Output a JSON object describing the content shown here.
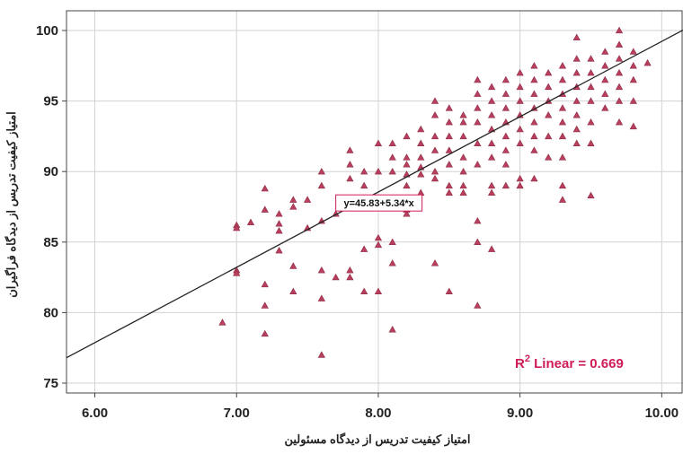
{
  "chart_data": {
    "type": "scatter",
    "xlabel": "امتیاز کیفیت تدریس از دیدگاه مسئولین",
    "ylabel": "امتیاز کیفیت تدریس از دیدگاه فراگیران",
    "xlim": [
      5.8,
      10.15
    ],
    "ylim": [
      74.3,
      101.4
    ],
    "x_ticks": [
      6.0,
      7.0,
      8.0,
      9.0,
      10.0
    ],
    "x_tick_labels": [
      "6.00",
      "7.00",
      "8.00",
      "9.00",
      "10.00"
    ],
    "y_ticks": [
      75,
      80,
      85,
      90,
      95,
      100
    ],
    "y_tick_labels": [
      "75",
      "80",
      "85",
      "90",
      "95",
      "100"
    ],
    "grid": true,
    "marker": "triangle",
    "marker_color": "#b8405e",
    "fit_line_color": "#222222",
    "fit": {
      "intercept": 45.83,
      "slope": 5.34,
      "equation_label": "y=45.83+5.34*x",
      "r2_label": "R² Linear = 0.669",
      "r2_color": "#d01c56"
    },
    "series": [
      {
        "points": [
          [
            6.9,
            79.3
          ],
          [
            7.0,
            86.2
          ],
          [
            7.0,
            86.0
          ],
          [
            7.0,
            83.0
          ],
          [
            7.0,
            82.8
          ],
          [
            7.1,
            86.4
          ],
          [
            7.2,
            88.8
          ],
          [
            7.2,
            87.3
          ],
          [
            7.2,
            82.0
          ],
          [
            7.2,
            80.5
          ],
          [
            7.2,
            78.5
          ],
          [
            7.3,
            87.0
          ],
          [
            7.3,
            86.3
          ],
          [
            7.3,
            85.8
          ],
          [
            7.3,
            84.4
          ],
          [
            7.4,
            88.0
          ],
          [
            7.4,
            87.5
          ],
          [
            7.4,
            83.3
          ],
          [
            7.4,
            81.5
          ],
          [
            7.5,
            88.0
          ],
          [
            7.5,
            86.0
          ],
          [
            7.6,
            90.0
          ],
          [
            7.6,
            89.0
          ],
          [
            7.6,
            86.5
          ],
          [
            7.6,
            83.0
          ],
          [
            7.6,
            81.0
          ],
          [
            7.6,
            77.0
          ],
          [
            7.7,
            87.0
          ],
          [
            7.7,
            82.5
          ],
          [
            7.8,
            91.5
          ],
          [
            7.8,
            90.5
          ],
          [
            7.8,
            89.5
          ],
          [
            7.8,
            83.0
          ],
          [
            7.8,
            82.5
          ],
          [
            7.9,
            90.0
          ],
          [
            7.9,
            89.0
          ],
          [
            7.9,
            84.5
          ],
          [
            7.9,
            81.5
          ],
          [
            8.0,
            92.0
          ],
          [
            8.0,
            90.0
          ],
          [
            8.0,
            85.3
          ],
          [
            8.0,
            84.8
          ],
          [
            8.0,
            81.5
          ],
          [
            8.1,
            92.0
          ],
          [
            8.1,
            91.0
          ],
          [
            8.1,
            90.0
          ],
          [
            8.1,
            85.0
          ],
          [
            8.1,
            83.5
          ],
          [
            8.1,
            78.8
          ],
          [
            8.2,
            92.5
          ],
          [
            8.2,
            91.0
          ],
          [
            8.2,
            90.5
          ],
          [
            8.2,
            89.8
          ],
          [
            8.2,
            89.0
          ],
          [
            8.2,
            87.3
          ],
          [
            8.2,
            87.0
          ],
          [
            8.3,
            93.0
          ],
          [
            8.3,
            92.0
          ],
          [
            8.3,
            91.0
          ],
          [
            8.3,
            90.3
          ],
          [
            8.3,
            89.8
          ],
          [
            8.3,
            88.5
          ],
          [
            8.4,
            95.0
          ],
          [
            8.4,
            94.0
          ],
          [
            8.4,
            92.5
          ],
          [
            8.4,
            91.5
          ],
          [
            8.4,
            90.0
          ],
          [
            8.4,
            89.5
          ],
          [
            8.4,
            83.5
          ],
          [
            8.5,
            94.5
          ],
          [
            8.5,
            93.5
          ],
          [
            8.5,
            92.5
          ],
          [
            8.5,
            91.5
          ],
          [
            8.5,
            90.5
          ],
          [
            8.5,
            89.0
          ],
          [
            8.5,
            88.5
          ],
          [
            8.5,
            81.5
          ],
          [
            8.6,
            94.0
          ],
          [
            8.6,
            93.5
          ],
          [
            8.6,
            92.5
          ],
          [
            8.6,
            91.0
          ],
          [
            8.6,
            90.0
          ],
          [
            8.6,
            89.0
          ],
          [
            8.6,
            88.5
          ],
          [
            8.7,
            96.5
          ],
          [
            8.7,
            95.5
          ],
          [
            8.7,
            94.5
          ],
          [
            8.7,
            93.5
          ],
          [
            8.7,
            92.0
          ],
          [
            8.7,
            90.5
          ],
          [
            8.7,
            86.5
          ],
          [
            8.7,
            85.0
          ],
          [
            8.7,
            80.5
          ],
          [
            8.8,
            96.0
          ],
          [
            8.8,
            95.0
          ],
          [
            8.8,
            94.0
          ],
          [
            8.8,
            93.0
          ],
          [
            8.8,
            92.0
          ],
          [
            8.8,
            91.0
          ],
          [
            8.8,
            89.0
          ],
          [
            8.8,
            88.5
          ],
          [
            8.8,
            84.5
          ],
          [
            8.9,
            96.5
          ],
          [
            8.9,
            95.5
          ],
          [
            8.9,
            94.5
          ],
          [
            8.9,
            93.5
          ],
          [
            8.9,
            92.5
          ],
          [
            8.9,
            91.5
          ],
          [
            8.9,
            90.5
          ],
          [
            8.9,
            89.0
          ],
          [
            9.0,
            97.0
          ],
          [
            9.0,
            96.0
          ],
          [
            9.0,
            95.0
          ],
          [
            9.0,
            94.0
          ],
          [
            9.0,
            93.0
          ],
          [
            9.0,
            92.0
          ],
          [
            9.0,
            89.5
          ],
          [
            9.0,
            89.0
          ],
          [
            9.1,
            97.5
          ],
          [
            9.1,
            96.5
          ],
          [
            9.1,
            95.5
          ],
          [
            9.1,
            94.5
          ],
          [
            9.1,
            93.5
          ],
          [
            9.1,
            92.5
          ],
          [
            9.1,
            91.5
          ],
          [
            9.1,
            89.5
          ],
          [
            9.2,
            97.0
          ],
          [
            9.2,
            96.0
          ],
          [
            9.2,
            95.0
          ],
          [
            9.2,
            94.0
          ],
          [
            9.2,
            92.5
          ],
          [
            9.2,
            91.0
          ],
          [
            9.3,
            97.5
          ],
          [
            9.3,
            96.5
          ],
          [
            9.3,
            95.5
          ],
          [
            9.3,
            94.5
          ],
          [
            9.3,
            93.5
          ],
          [
            9.3,
            92.5
          ],
          [
            9.3,
            91.0
          ],
          [
            9.3,
            89.0
          ],
          [
            9.3,
            88.0
          ],
          [
            9.4,
            99.5
          ],
          [
            9.4,
            98.0
          ],
          [
            9.4,
            97.0
          ],
          [
            9.4,
            96.0
          ],
          [
            9.4,
            95.0
          ],
          [
            9.4,
            94.0
          ],
          [
            9.4,
            93.0
          ],
          [
            9.4,
            92.0
          ],
          [
            9.5,
            98.0
          ],
          [
            9.5,
            97.0
          ],
          [
            9.5,
            96.0
          ],
          [
            9.5,
            95.0
          ],
          [
            9.5,
            93.5
          ],
          [
            9.5,
            92.0
          ],
          [
            9.5,
            88.3
          ],
          [
            9.6,
            98.5
          ],
          [
            9.6,
            97.5
          ],
          [
            9.6,
            96.5
          ],
          [
            9.6,
            95.5
          ],
          [
            9.6,
            94.5
          ],
          [
            9.7,
            100.0
          ],
          [
            9.7,
            99.0
          ],
          [
            9.7,
            98.0
          ],
          [
            9.7,
            97.0
          ],
          [
            9.7,
            96.0
          ],
          [
            9.7,
            95.0
          ],
          [
            9.7,
            93.5
          ],
          [
            9.8,
            98.5
          ],
          [
            9.8,
            97.5
          ],
          [
            9.8,
            96.5
          ],
          [
            9.8,
            95.0
          ],
          [
            9.8,
            93.2
          ],
          [
            9.9,
            97.7
          ]
        ]
      }
    ]
  }
}
